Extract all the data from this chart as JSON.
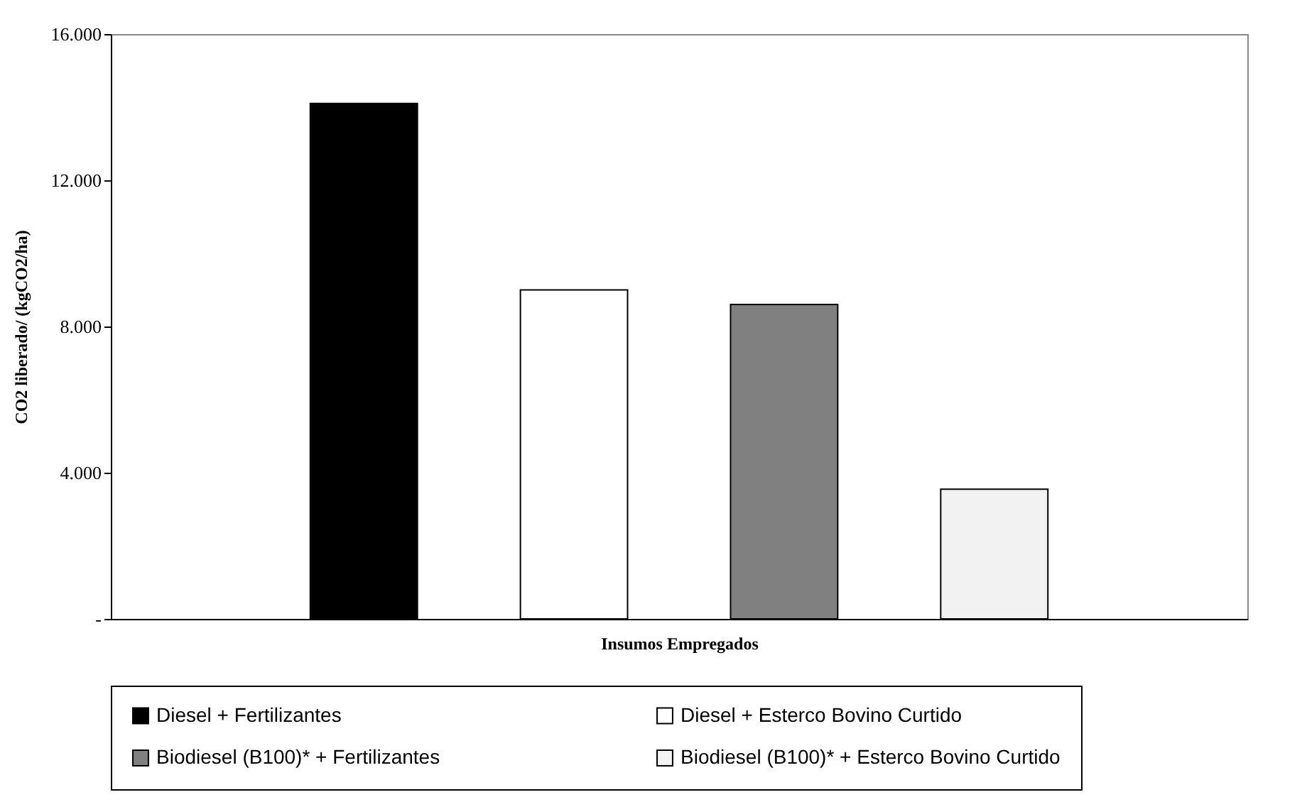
{
  "chart_data": {
    "type": "bar",
    "xlabel": "Insumos Empregados",
    "ylabel": "CO2 liberado/ (kgCO2/ha)",
    "categories": [
      null
    ],
    "series": [
      {
        "name": "Diesel + Fertilizantes",
        "color": "#000000",
        "values": [
          14100
        ]
      },
      {
        "name": "Diesel + Esterco Bovino Curtido",
        "color": "#ffffff",
        "values": [
          9000
        ]
      },
      {
        "name": "Biodiesel (B100)* + Fertilizantes",
        "color": "#808080",
        "values": [
          8600
        ]
      },
      {
        "name": "Biodiesel (B100)* + Esterco Bovino Curtido",
        "color": "#f2f2f2",
        "values": [
          3550
        ]
      }
    ],
    "ylim": [
      0,
      16000
    ],
    "yticks": [
      {
        "value": 0,
        "label": "-"
      },
      {
        "value": 4000,
        "label": "4.000"
      },
      {
        "value": 8000,
        "label": "8.000"
      },
      {
        "value": 12000,
        "label": "12.000"
      },
      {
        "value": 16000,
        "label": "16.000"
      }
    ],
    "tick_labels": "y",
    "grid": false,
    "legend": "bottom"
  }
}
